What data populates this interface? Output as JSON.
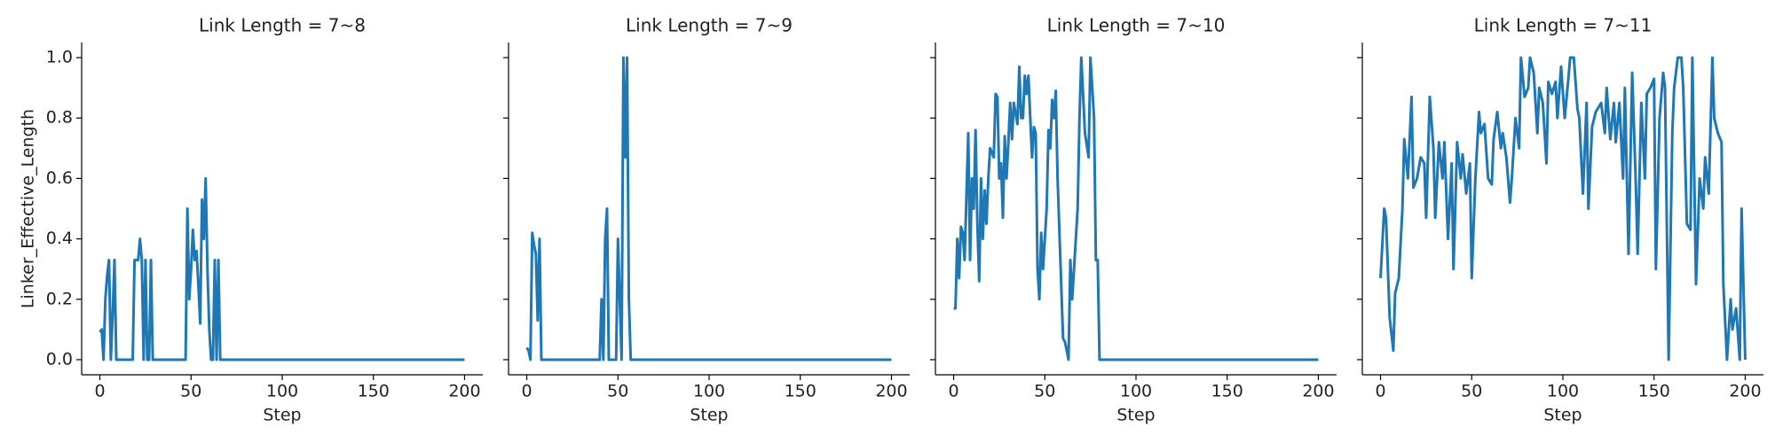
{
  "chart_data": [
    {
      "type": "line",
      "title": "Link Length = 7~8",
      "xlabel": "Step",
      "ylabel": "Linker_Effective_Length",
      "x": [
        0,
        1,
        2,
        3,
        4,
        5,
        6,
        7,
        8,
        9,
        18,
        19,
        21,
        22,
        23,
        24,
        25,
        26,
        27,
        28,
        29,
        47,
        48,
        49,
        50,
        51,
        52,
        53,
        54,
        55,
        56,
        57,
        58,
        59,
        60,
        61,
        62,
        63,
        64,
        65,
        66,
        200
      ],
      "values": [
        0.09,
        0.1,
        0,
        0.2,
        0.28,
        0.33,
        0,
        0.15,
        0.33,
        0,
        0,
        0.33,
        0.33,
        0.4,
        0.33,
        0,
        0.33,
        0,
        0,
        0.33,
        0,
        0,
        0.5,
        0.2,
        0.3,
        0.43,
        0.33,
        0.36,
        0.25,
        0.12,
        0.53,
        0.4,
        0.6,
        0.3,
        0.1,
        0,
        0,
        0.33,
        0,
        0.33,
        0,
        0
      ],
      "color": "#1f77b4",
      "xlim": [
        -10,
        210
      ],
      "ylim": [
        -0.05,
        1.05
      ],
      "xticks": [
        0,
        50,
        100,
        150,
        200
      ],
      "yticks": [
        {
          "value": 0,
          "label": "0.0"
        },
        {
          "value": 0.2,
          "label": "0.2"
        },
        {
          "value": 0.4,
          "label": "0.4"
        },
        {
          "value": 0.6,
          "label": "0.6"
        },
        {
          "value": 0.8,
          "label": "0.8"
        },
        {
          "value": 1,
          "label": "1.0"
        }
      ]
    },
    {
      "type": "line",
      "title": "Link Length = 7~9",
      "xlabel": "Step",
      "x": [
        0,
        1,
        2,
        3,
        4,
        5,
        6,
        7,
        8,
        40,
        41,
        42,
        43,
        44,
        45,
        49,
        50,
        51,
        52,
        53,
        54,
        55,
        56,
        57,
        200
      ],
      "values": [
        0.04,
        0.03,
        0,
        0.42,
        0.38,
        0.35,
        0.13,
        0.4,
        0,
        0,
        0.2,
        0,
        0.4,
        0.5,
        0,
        0,
        0.4,
        0.2,
        0,
        1,
        0.67,
        1,
        0.2,
        0,
        0
      ],
      "color": "#1f77b4",
      "xlim": [
        -10,
        210
      ],
      "ylim": [
        -0.05,
        1.05
      ],
      "xticks": [
        0,
        50,
        100,
        150,
        200
      ],
      "yticks": [
        0,
        0.2,
        0.4,
        0.6,
        0.8,
        1
      ]
    },
    {
      "type": "line",
      "title": "Link Length = 7~10",
      "xlabel": "Step",
      "x": [
        0,
        1,
        2,
        3,
        4,
        5,
        6,
        8,
        9,
        10,
        11,
        12,
        13,
        14,
        15,
        16,
        17,
        18,
        19,
        20,
        22,
        23,
        24,
        25,
        26,
        27,
        28,
        29,
        30,
        31,
        32,
        33,
        35,
        36,
        37,
        38,
        39,
        40,
        41,
        42,
        43,
        44,
        45,
        46,
        47,
        48,
        49,
        51,
        52,
        53,
        54,
        55,
        56,
        57,
        60,
        61,
        62,
        63,
        64,
        65,
        66,
        67,
        68,
        69,
        70,
        72,
        74,
        75,
        77,
        78,
        79,
        80,
        200
      ],
      "values": [
        0.17,
        0.17,
        0.4,
        0.27,
        0.44,
        0.42,
        0.33,
        0.75,
        0.33,
        0.6,
        0.5,
        0.76,
        0.45,
        0.26,
        0.6,
        0.4,
        0.56,
        0.45,
        0.6,
        0.7,
        0.67,
        0.88,
        0.87,
        0.6,
        0.65,
        0.47,
        0.74,
        0.6,
        0.72,
        0.85,
        0.73,
        0.85,
        0.78,
        0.97,
        0.8,
        0.8,
        0.94,
        0.88,
        0.94,
        0.8,
        0.67,
        0.77,
        0.75,
        0.3,
        0.2,
        0.42,
        0.3,
        0.5,
        0.76,
        0.7,
        0.86,
        0.8,
        0.89,
        0.6,
        0.07,
        0.06,
        0.03,
        0,
        0.33,
        0.2,
        0.3,
        0.4,
        0.5,
        0.8,
        1,
        0.75,
        0.67,
        1,
        0.8,
        0.33,
        0.33,
        0,
        0
      ],
      "color": "#1f77b4",
      "xlim": [
        -10,
        210
      ],
      "ylim": [
        -0.05,
        1.05
      ],
      "xticks": [
        0,
        50,
        100,
        150,
        200
      ],
      "yticks": [
        0,
        0.2,
        0.4,
        0.6,
        0.8,
        1
      ]
    },
    {
      "type": "line",
      "title": "Link Length = 7~11",
      "xlabel": "Step",
      "x": [
        0,
        2,
        3,
        5,
        7,
        8,
        10,
        12,
        13,
        15,
        17,
        18,
        20,
        22,
        24,
        25,
        27,
        29,
        30,
        32,
        34,
        35,
        37,
        39,
        40,
        42,
        44,
        45,
        47,
        49,
        50,
        52,
        54,
        55,
        57,
        59,
        61,
        62,
        64,
        66,
        67,
        69,
        71,
        72,
        74,
        76,
        77,
        79,
        81,
        82,
        84,
        86,
        87,
        89,
        91,
        92,
        94,
        96,
        97,
        99,
        101,
        103,
        104,
        106,
        108,
        109,
        111,
        113,
        114,
        116,
        118,
        119,
        121,
        123,
        124,
        126,
        128,
        129,
        131,
        133,
        134,
        136,
        138,
        140,
        141,
        143,
        145,
        146,
        148,
        150,
        151,
        153,
        155,
        156,
        158,
        160,
        161,
        163,
        165,
        166,
        168,
        170,
        171,
        173,
        175,
        177,
        178,
        180,
        182,
        183,
        185,
        187,
        188,
        190,
        192,
        193,
        195,
        197,
        198,
        200
      ],
      "values": [
        0.27,
        0.5,
        0.47,
        0.14,
        0.03,
        0.22,
        0.27,
        0.5,
        0.73,
        0.6,
        0.87,
        0.57,
        0.6,
        0.67,
        0.65,
        0.47,
        0.87,
        0.7,
        0.47,
        0.72,
        0.6,
        0.72,
        0.4,
        0.65,
        0.3,
        0.72,
        0.6,
        0.68,
        0.55,
        0.65,
        0.27,
        0.6,
        0.82,
        0.75,
        0.78,
        0.6,
        0.58,
        0.73,
        0.82,
        0.7,
        0.75,
        0.67,
        0.52,
        0.6,
        0.8,
        0.7,
        1,
        0.87,
        0.9,
        1,
        0.95,
        0.75,
        0.9,
        0.85,
        0.65,
        0.92,
        0.88,
        0.92,
        0.8,
        0.97,
        0.8,
        0.93,
        1,
        1,
        0.83,
        0.8,
        0.55,
        0.85,
        0.5,
        0.77,
        0.82,
        0.83,
        0.85,
        0.75,
        0.9,
        0.73,
        0.85,
        0.72,
        0.85,
        0.6,
        0.9,
        0.35,
        0.95,
        0.58,
        0.35,
        0.85,
        0.6,
        0.88,
        0.9,
        0.93,
        0.3,
        0.8,
        0.95,
        0.9,
        0,
        0.75,
        0.9,
        1,
        1,
        0.9,
        0.45,
        0.43,
        1,
        0.25,
        0.6,
        0.5,
        0.67,
        0.55,
        1,
        0.8,
        0.75,
        0.72,
        0.25,
        0,
        0.2,
        0.1,
        0.17,
        0,
        0.5,
        0
      ],
      "color": "#1f77b4",
      "xlim": [
        -10,
        210
      ],
      "ylim": [
        -0.05,
        1.05
      ],
      "xticks": [
        0,
        50,
        100,
        150,
        200
      ],
      "yticks": [
        0,
        0.2,
        0.4,
        0.6,
        0.8,
        1
      ]
    }
  ]
}
